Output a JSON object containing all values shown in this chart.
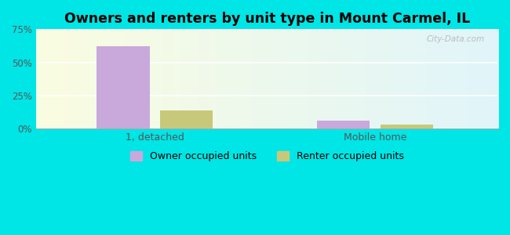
{
  "title": "Owners and renters by unit type in Mount Carmel, IL",
  "categories": [
    "1, detached",
    "Mobile home"
  ],
  "owner_values": [
    62.0,
    6.0
  ],
  "renter_values": [
    14.0,
    3.0
  ],
  "owner_color": "#c9a8dc",
  "renter_color": "#c8c87a",
  "ylim": [
    0,
    75
  ],
  "yticks": [
    0,
    25,
    50,
    75
  ],
  "ytick_labels": [
    "0%",
    "25%",
    "50%",
    "75%"
  ],
  "background_color": "#00e5e5",
  "bar_width": 0.12,
  "group_positions": [
    0.22,
    0.72
  ],
  "xlim": [
    -0.05,
    1.0
  ],
  "legend_labels": [
    "Owner occupied units",
    "Renter occupied units"
  ],
  "watermark": "City-Data.com"
}
